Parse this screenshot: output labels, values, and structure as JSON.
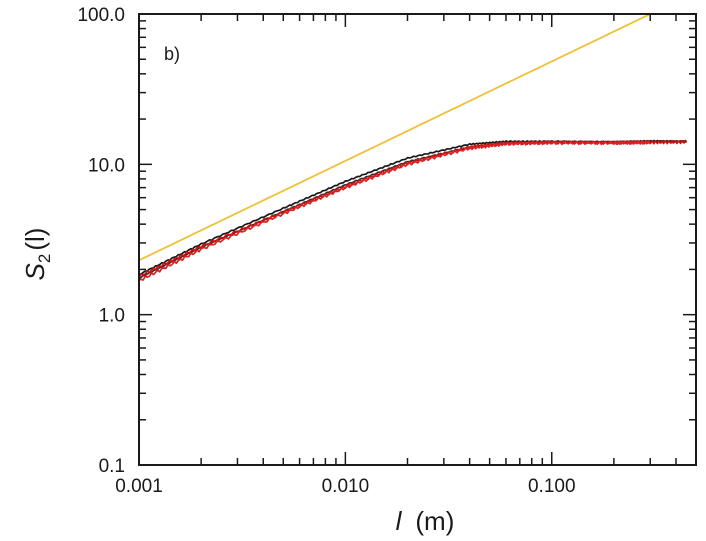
{
  "chart_data": {
    "type": "line",
    "panel_label": "b)",
    "xlabel": "l",
    "xlabel_unit": "(m)",
    "ylabel": "S",
    "ylabel_sub": "2",
    "ylabel_arg": "(l)",
    "x_scale": "log",
    "y_scale": "log",
    "xlim": [
      0.001,
      0.5
    ],
    "ylim": [
      0.1,
      100
    ],
    "x_ticks": [
      {
        "value": 0.001,
        "label": "0.001"
      },
      {
        "value": 0.01,
        "label": "0.010"
      },
      {
        "value": 0.1,
        "label": "0.100"
      }
    ],
    "y_ticks": [
      {
        "value": 0.1,
        "label": "0.1"
      },
      {
        "value": 1,
        "label": "1.0"
      },
      {
        "value": 10,
        "label": "10.0"
      },
      {
        "value": 100,
        "label": "100.0"
      }
    ],
    "grid": false,
    "series": [
      {
        "color": "#f0c038",
        "style": "reference",
        "x": [
          0.001,
          0.3
        ],
        "y": [
          2.3,
          100
        ]
      },
      {
        "color": "#1a1a1a",
        "x": [
          0.001,
          0.002,
          0.005,
          0.01,
          0.02,
          0.04,
          0.06,
          0.1,
          0.2,
          0.3,
          0.45
        ],
        "y": [
          1.85,
          2.95,
          5.1,
          7.7,
          11.0,
          13.6,
          14.2,
          14.2,
          14.1,
          14.3,
          14.2
        ]
      },
      {
        "color": "#333333",
        "x": [
          0.001,
          0.002,
          0.005,
          0.01,
          0.02,
          0.04,
          0.06,
          0.1,
          0.2,
          0.3,
          0.45
        ],
        "y": [
          1.75,
          2.8,
          4.85,
          7.3,
          10.4,
          13.0,
          13.9,
          14.1,
          14.1,
          14.2,
          14.2
        ]
      },
      {
        "color": "#cc1010",
        "x": [
          0.001,
          0.002,
          0.005,
          0.01,
          0.02,
          0.04,
          0.06,
          0.1,
          0.2,
          0.3,
          0.45
        ],
        "y": [
          1.8,
          2.85,
          4.8,
          7.1,
          10.2,
          13.0,
          13.8,
          14.0,
          13.9,
          14.0,
          14.1
        ]
      },
      {
        "color": "#dd2020",
        "x": [
          0.001,
          0.002,
          0.005,
          0.01,
          0.02,
          0.04,
          0.06,
          0.1,
          0.2,
          0.3
        ],
        "y": [
          1.68,
          2.72,
          4.7,
          7.0,
          10.0,
          12.8,
          13.7,
          13.9,
          13.9,
          14.0
        ]
      }
    ]
  }
}
